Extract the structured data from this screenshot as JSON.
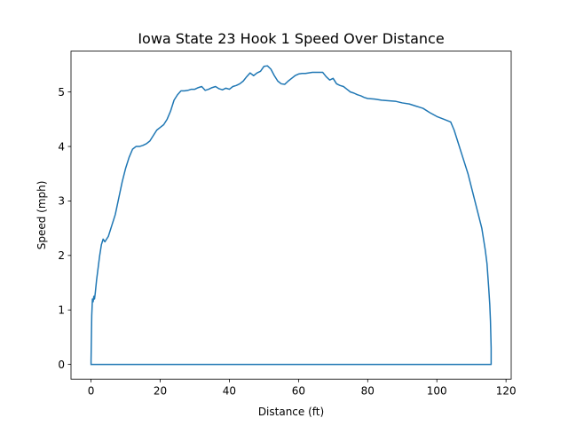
{
  "chart_data": {
    "type": "line",
    "title": "Iowa State 23 Hook 1 Speed Over Distance",
    "xlabel": "Distance (ft)",
    "ylabel": "Speed (mph)",
    "xlim": [
      -5.8,
      121.5
    ],
    "ylim": [
      -0.27,
      5.75
    ],
    "xticks": [
      0,
      20,
      40,
      60,
      80,
      100,
      120
    ],
    "yticks": [
      0,
      1,
      2,
      3,
      4,
      5
    ],
    "grid": false,
    "legend": "none",
    "series": [
      {
        "color": "#1f77b4",
        "x": [
          0,
          0,
          0.2,
          0.4,
          0.6,
          0.8,
          1.0,
          1.2,
          1.6,
          2.0,
          2.5,
          3.0,
          3.5,
          4.0,
          4.5,
          5.0,
          6.0,
          7.0,
          8.0,
          9.0,
          10.0,
          11.0,
          12.0,
          13.0,
          14.0,
          15.0,
          16.0,
          17.0,
          18.0,
          19.0,
          20.0,
          21.0,
          22.0,
          23.0,
          24.0,
          25.0,
          26.0,
          27.0,
          28.0,
          29.0,
          30.0,
          31.0,
          32.0,
          33.0,
          34.0,
          35.0,
          36.0,
          37.0,
          38.0,
          39.0,
          40.0,
          41.0,
          42.0,
          43.0,
          44.0,
          45.0,
          46.0,
          47.0,
          48.0,
          49.0,
          50.0,
          51.0,
          52.0,
          53.0,
          54.0,
          55.0,
          56.0,
          57.0,
          58.0,
          59.0,
          60.0,
          61.0,
          62.0,
          63.0,
          64.0,
          65.0,
          66.0,
          67.0,
          68.0,
          69.0,
          70.0,
          71.0,
          72.0,
          73.0,
          74.0,
          75.0,
          76.0,
          77.0,
          78.0,
          79.0,
          80.0,
          82.0,
          84.0,
          86.0,
          88.0,
          90.0,
          92.0,
          93.0,
          94.0,
          95.0,
          96.0,
          98.0,
          100.0,
          102.0,
          104.0,
          105.0,
          106.0,
          107.0,
          108.0,
          109.0,
          110.0,
          111.0,
          112.0,
          113.0,
          114.0,
          114.5,
          115.0,
          115.3,
          115.5,
          115.7,
          115.7,
          100,
          50,
          0
        ],
        "y": [
          0,
          0.08,
          0.9,
          1.2,
          1.15,
          1.25,
          1.2,
          1.3,
          1.55,
          1.75,
          2.0,
          2.2,
          2.3,
          2.25,
          2.3,
          2.35,
          2.55,
          2.75,
          3.05,
          3.35,
          3.6,
          3.8,
          3.95,
          4.0,
          4.0,
          4.02,
          4.05,
          4.1,
          4.2,
          4.3,
          4.35,
          4.4,
          4.5,
          4.65,
          4.85,
          4.95,
          5.02,
          5.02,
          5.03,
          5.05,
          5.05,
          5.08,
          5.1,
          5.03,
          5.05,
          5.08,
          5.1,
          5.06,
          5.04,
          5.07,
          5.05,
          5.1,
          5.12,
          5.15,
          5.2,
          5.28,
          5.35,
          5.3,
          5.35,
          5.38,
          5.47,
          5.48,
          5.42,
          5.3,
          5.2,
          5.15,
          5.14,
          5.2,
          5.25,
          5.3,
          5.33,
          5.34,
          5.34,
          5.35,
          5.36,
          5.36,
          5.36,
          5.36,
          5.28,
          5.22,
          5.25,
          5.15,
          5.12,
          5.1,
          5.05,
          5.0,
          4.98,
          4.95,
          4.93,
          4.9,
          4.88,
          4.87,
          4.85,
          4.84,
          4.83,
          4.8,
          4.78,
          4.76,
          4.74,
          4.72,
          4.7,
          4.62,
          4.55,
          4.5,
          4.45,
          4.3,
          4.1,
          3.9,
          3.7,
          3.5,
          3.25,
          3.0,
          2.75,
          2.5,
          2.1,
          1.85,
          1.4,
          1.1,
          0.8,
          0.3,
          0.0,
          0,
          0,
          0
        ]
      }
    ]
  }
}
